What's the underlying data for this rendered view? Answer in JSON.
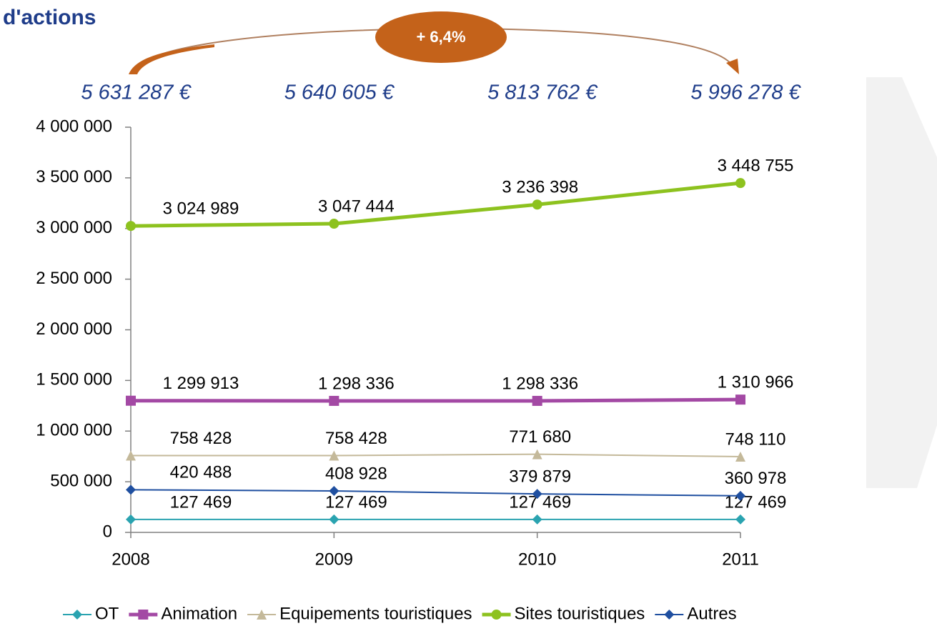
{
  "chart_data": {
    "type": "line",
    "title": "d'actions",
    "annotations": [
      "5 631 287 €",
      "5 640 605 €",
      "5 813 762 €",
      "5 996 278 €"
    ],
    "badge": "+ 6,4%",
    "categories": [
      "2008",
      "2009",
      "2010",
      "2011"
    ],
    "ylim": [
      0,
      4000000
    ],
    "yticks": [
      0,
      {
        "value": 500000,
        "label": "500 000"
      },
      {
        "value": 1000000,
        "label": "1 000 000"
      },
      {
        "value": 1500000,
        "label": "1 500 000"
      },
      {
        "value": 2000000,
        "label": "2 000 000"
      },
      {
        "value": 2500000,
        "label": "2 500 000"
      },
      {
        "value": 3000000,
        "label": "3 000 000"
      },
      {
        "value": 3500000,
        "label": "3 500 000"
      },
      {
        "value": 4000000,
        "label": "4 000 000"
      }
    ],
    "series": [
      {
        "name": "OT",
        "color": "#2aa3b0",
        "marker": "diamond",
        "values": [
          127469,
          127469,
          127469,
          127469
        ],
        "value_labels": [
          "127 469",
          "127 469",
          "127 469",
          "127 469"
        ]
      },
      {
        "name": "Animation",
        "color": "#a349a4",
        "marker": "square",
        "values": [
          1299913,
          1298336,
          1298336,
          1310966
        ],
        "value_labels": [
          "1 299 913",
          "1 298 336",
          "1 298 336",
          "1 310 966"
        ]
      },
      {
        "name": "Equipements touristiques",
        "color": "#c4b99a",
        "marker": "triangle",
        "values": [
          758428,
          758428,
          771680,
          748110
        ],
        "value_labels": [
          "758 428",
          "758 428",
          "771 680",
          "748 110"
        ]
      },
      {
        "name": "Sites touristiques",
        "color": "#8dc21f",
        "marker": "circle",
        "values": [
          3024989,
          3047444,
          3236398,
          3448755
        ],
        "value_labels": [
          "3 024 989",
          "3 047 444",
          "3 236 398",
          "3 448 755"
        ]
      },
      {
        "name": "Autres",
        "color": "#1f4fa0",
        "marker": "diamond",
        "values": [
          420488,
          408928,
          379879,
          360978
        ],
        "value_labels": [
          "420 488",
          "408 928",
          "379 879",
          "360 978"
        ]
      }
    ]
  }
}
